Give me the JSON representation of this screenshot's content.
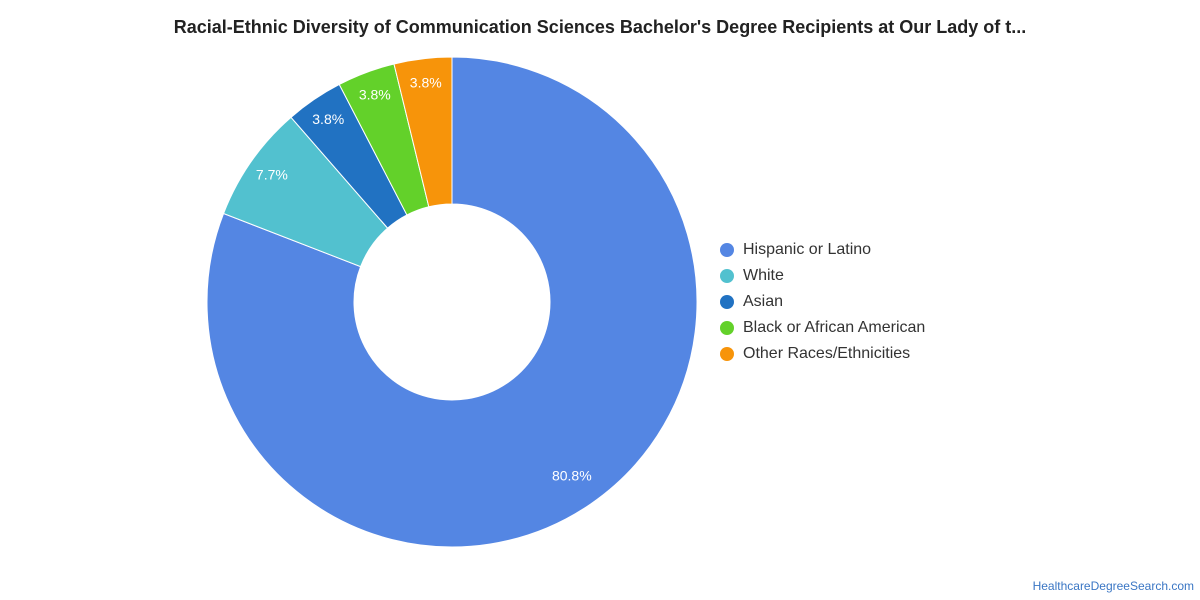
{
  "chart_data": {
    "type": "pie",
    "title": "Racial-Ethnic Diversity of Communication Sciences Bachelor's Degree Recipients at Our Lady of t...",
    "categories": [
      "Hispanic or Latino",
      "White",
      "Asian",
      "Black or African American",
      "Other Races/Ethnicities"
    ],
    "values": [
      80.8,
      7.7,
      3.8,
      3.8,
      3.8
    ],
    "labels": [
      "80.8%",
      "7.7%",
      "3.8%",
      "3.8%",
      "3.8%"
    ],
    "colors": [
      "#5486e3",
      "#52c1cf",
      "#2172c2",
      "#63d12a",
      "#f7940a"
    ],
    "legend_position": "right"
  },
  "source": "HealthcareDegreeSearch.com"
}
